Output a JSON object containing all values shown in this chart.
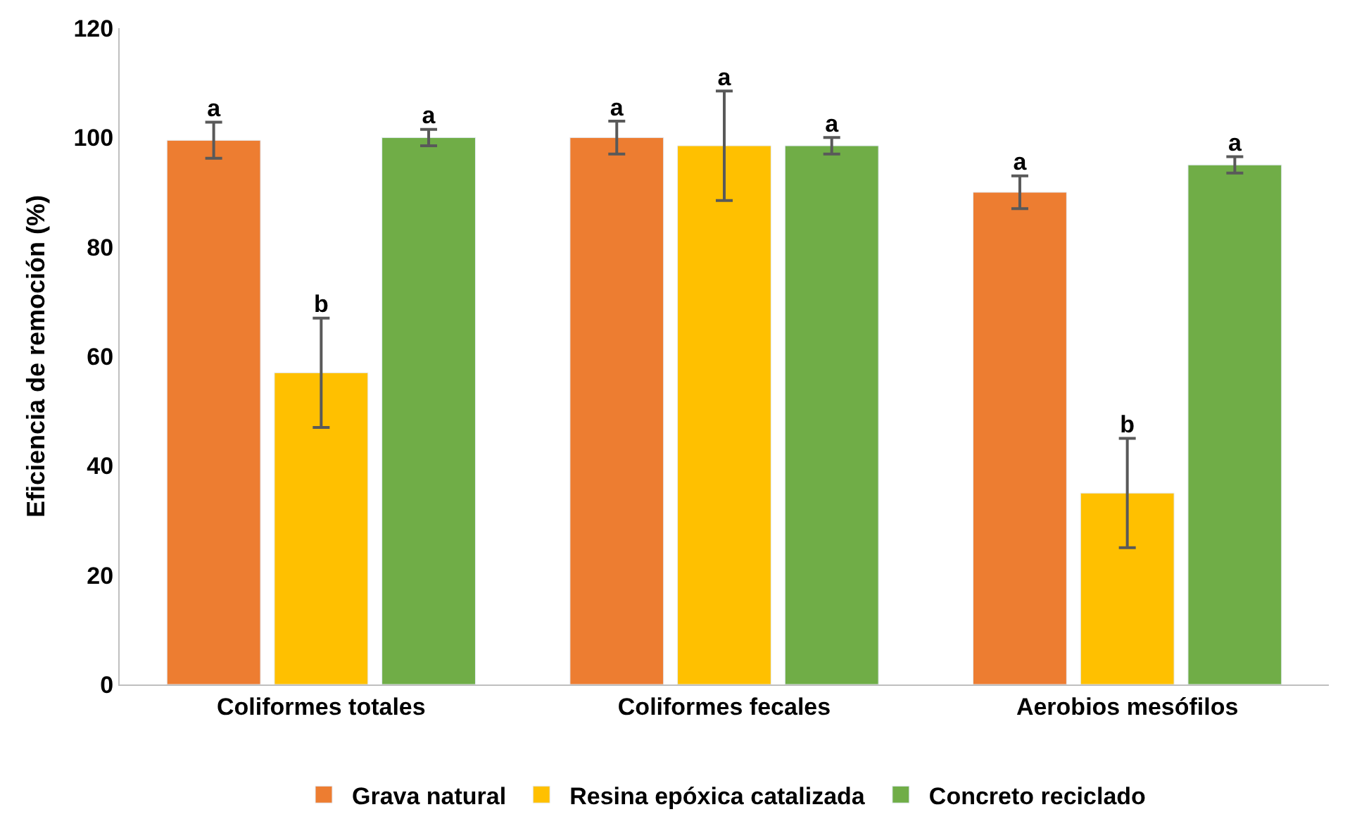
{
  "chart_data": {
    "type": "bar",
    "ylabel": "Eficiencia de remoción (%)",
    "categories": [
      "Coliformes totales",
      "Coliformes fecales",
      "Aerobios mesófilos"
    ],
    "series": [
      {
        "name": "Grava natural",
        "color": "#ed7d31",
        "values": [
          99.5,
          100,
          90
        ],
        "errors": [
          3.3,
          3,
          3
        ],
        "value_labels": [
          "a",
          "a",
          "a"
        ]
      },
      {
        "name": "Resina epóxica catalizada",
        "color": "#ffc000",
        "values": [
          57,
          98.5,
          35
        ],
        "errors": [
          10,
          10,
          10
        ],
        "value_labels": [
          "b",
          "a",
          "b"
        ]
      },
      {
        "name": "Concreto reciclado",
        "color": "#70ad47",
        "values": [
          100,
          98.5,
          95
        ],
        "errors": [
          1.5,
          1.5,
          1.5
        ],
        "value_labels": [
          "a",
          "a",
          "a"
        ]
      }
    ],
    "ylim": [
      0,
      120
    ],
    "yticks": [
      0,
      20,
      40,
      60,
      80,
      100,
      120
    ],
    "legend": "bottom"
  }
}
